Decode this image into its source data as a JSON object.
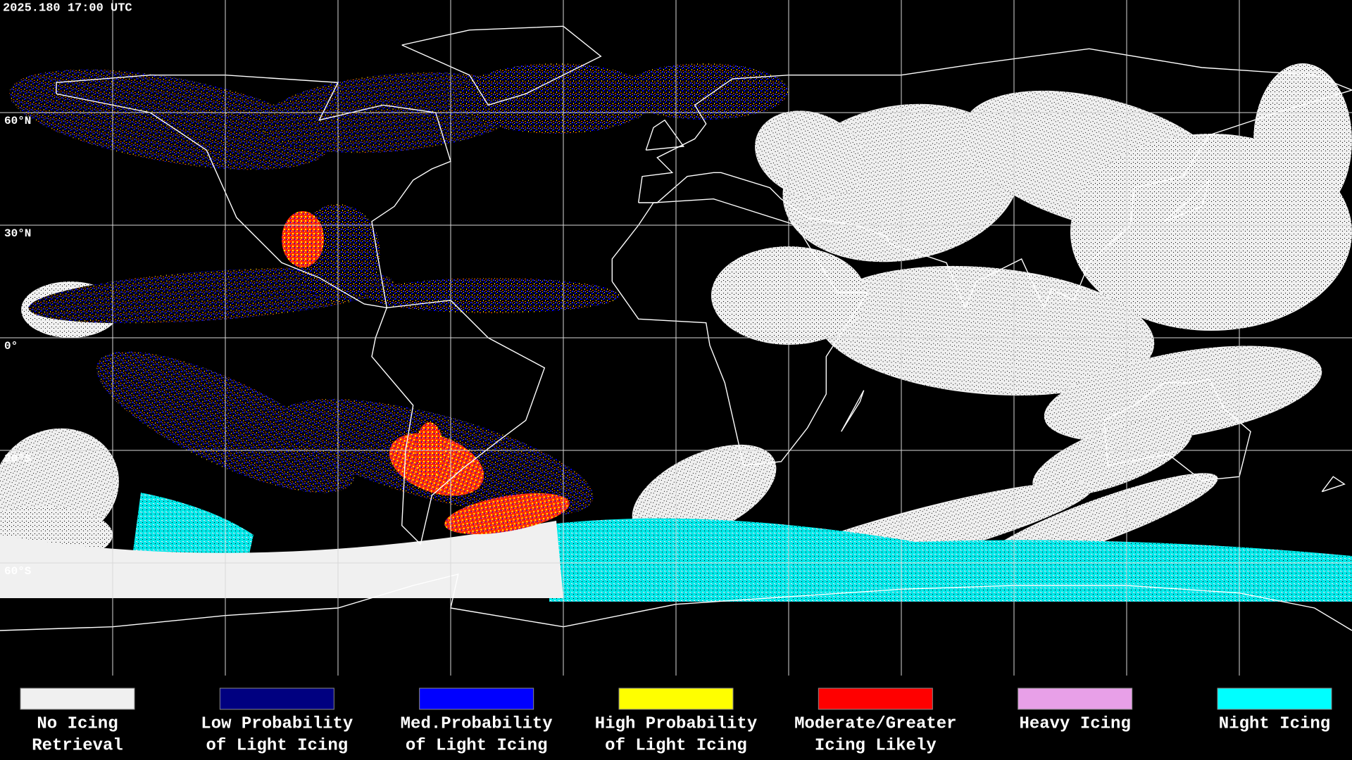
{
  "header": {
    "timestamp": "2025.180 17:00 UTC"
  },
  "latitude_labels": [
    "60°N",
    "30°N",
    "0°",
    "30°S",
    "60°S"
  ],
  "legend": {
    "items": [
      {
        "label_lines": [
          "No Icing",
          "Retrieval"
        ],
        "color": "#f0f0f0"
      },
      {
        "label_lines": [
          "Low Probability",
          "of Light Icing"
        ],
        "color": "#000080"
      },
      {
        "label_lines": [
          "Med.Probability",
          "of Light Icing"
        ],
        "color": "#0000ff"
      },
      {
        "label_lines": [
          "High Probability",
          "of Light Icing"
        ],
        "color": "#ffff00"
      },
      {
        "label_lines": [
          "Moderate/Greater",
          "Icing Likely"
        ],
        "color": "#ff0000"
      },
      {
        "label_lines": [
          "Heavy Icing"
        ],
        "color": "#e8a0e8"
      },
      {
        "label_lines": [
          "Night Icing"
        ],
        "color": "#00ffff"
      }
    ]
  }
}
